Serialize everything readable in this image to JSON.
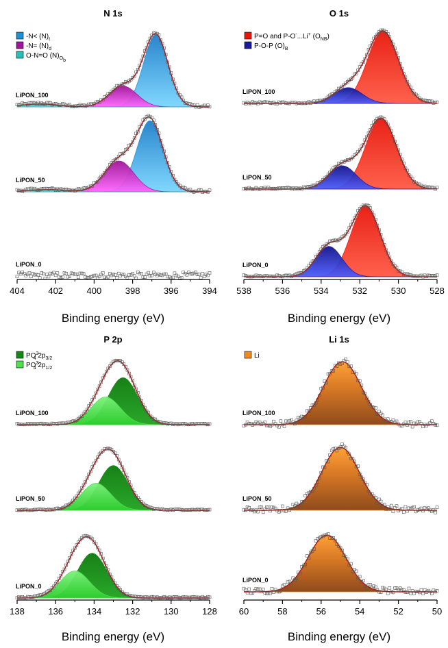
{
  "chart_data": [
    {
      "type": "area",
      "title": "N 1s",
      "xlabel": "Binding energy (eV)",
      "xlim": [
        404,
        394
      ],
      "xticks": [
        "404",
        "402",
        "400",
        "398",
        "396",
        "394"
      ],
      "legend": [
        {
          "main": "-N< (N",
          "sub": "t",
          "tail": ")",
          "color": "#1f8fd6"
        },
        {
          "main": "-N= (N",
          "sub": "d",
          "tail": ")",
          "color": "#a0159a"
        },
        {
          "main": "O-N=O (N",
          "sub": "O",
          "tail": ")",
          "sub2": "b",
          "color": "#27c0b9"
        }
      ],
      "spectra": [
        {
          "label": "LiPON_100",
          "components": [
            {
              "name": "Nt",
              "center": 396.8,
              "fwhm": 1.5,
              "height": 1.0,
              "color": "#1f8fd6"
            },
            {
              "name": "Nd",
              "center": 398.5,
              "fwhm": 1.7,
              "height": 0.29,
              "color": "#a0159a"
            },
            {
              "name": "NOb",
              "center": 402.8,
              "fwhm": 2.2,
              "height": 0.04,
              "color": "#27c0b9"
            }
          ],
          "noise": 0.02
        },
        {
          "label": "LiPON_50",
          "components": [
            {
              "name": "Nt",
              "center": 397.1,
              "fwhm": 1.6,
              "height": 0.97,
              "color": "#1f8fd6"
            },
            {
              "name": "Nd",
              "center": 398.7,
              "fwhm": 1.8,
              "height": 0.42,
              "color": "#a0159a"
            },
            {
              "name": "NOb",
              "center": 402.4,
              "fwhm": 2.4,
              "height": 0.03,
              "color": "#27c0b9"
            }
          ],
          "noise": 0.02
        },
        {
          "label": "LiPON_0",
          "components": [],
          "noise": 0.05
        }
      ]
    },
    {
      "type": "area",
      "title": "O 1s",
      "xlabel": "Binding energy (eV)",
      "xlim": [
        538,
        528
      ],
      "xticks": [
        "538",
        "536",
        "534",
        "532",
        "530",
        "528"
      ],
      "legend": [
        {
          "main": "P=O and P-O",
          "sup": "-",
          "mid": "...Li",
          "sup2": "+",
          "tail": " (O",
          "sub": "NB",
          "tail2": ")",
          "color": "#e8170b"
        },
        {
          "main": "P-O-P (O",
          "sub": "B",
          "tail": ")",
          "color": "#1a1aa0"
        }
      ],
      "spectra": [
        {
          "label": "LiPON_100",
          "components": [
            {
              "name": "ONB",
              "center": 530.8,
              "fwhm": 1.9,
              "height": 1.0,
              "color": "#e8170b"
            },
            {
              "name": "OB",
              "center": 532.6,
              "fwhm": 1.7,
              "height": 0.22,
              "color": "#1a1aa0"
            }
          ],
          "noise": 0.015
        },
        {
          "label": "LiPON_50",
          "components": [
            {
              "name": "ONB",
              "center": 530.9,
              "fwhm": 1.9,
              "height": 1.0,
              "color": "#e8170b"
            },
            {
              "name": "OB",
              "center": 532.9,
              "fwhm": 1.7,
              "height": 0.33,
              "color": "#1a1aa0"
            }
          ],
          "noise": 0.015
        },
        {
          "label": "LiPON_0",
          "components": [
            {
              "name": "ONB",
              "center": 531.7,
              "fwhm": 1.8,
              "height": 1.0,
              "color": "#e8170b"
            },
            {
              "name": "OB",
              "center": 533.6,
              "fwhm": 1.6,
              "height": 0.43,
              "color": "#1a1aa0"
            }
          ],
          "noise": 0.015
        }
      ]
    },
    {
      "type": "area",
      "title": "P 2p",
      "xlabel": "Binding energy (eV)",
      "xlim": [
        138,
        128
      ],
      "xticks": [
        "138",
        "136",
        "134",
        "132",
        "130",
        "128"
      ],
      "legend": [
        {
          "main": "PO",
          "sub": "4",
          "sup": "3-",
          "tail": " 2p",
          "sub2": "3/2",
          "color": "#148a14"
        },
        {
          "main": "PO",
          "sub": "4",
          "sup": "3-",
          "tail": " 2p",
          "sub2": "1/2",
          "color": "#4de24d"
        }
      ],
      "spectra": [
        {
          "label": "LiPON_100",
          "components": [
            {
              "name": "2p3/2",
              "center": 132.5,
              "fwhm": 1.8,
              "height": 0.78,
              "color": "#148a14"
            },
            {
              "name": "2p1/2",
              "center": 133.4,
              "fwhm": 1.8,
              "height": 0.46,
              "color": "#4de24d"
            }
          ],
          "noise": 0.01
        },
        {
          "label": "LiPON_50",
          "components": [
            {
              "name": "2p3/2",
              "center": 133.0,
              "fwhm": 1.8,
              "height": 0.76,
              "color": "#148a14"
            },
            {
              "name": "2p1/2",
              "center": 133.9,
              "fwhm": 1.8,
              "height": 0.46,
              "color": "#4de24d"
            }
          ],
          "noise": 0.01
        },
        {
          "label": "LiPON_0",
          "components": [
            {
              "name": "2p3/2",
              "center": 134.1,
              "fwhm": 1.8,
              "height": 0.76,
              "color": "#148a14"
            },
            {
              "name": "2p1/2",
              "center": 135.0,
              "fwhm": 1.8,
              "height": 0.46,
              "color": "#4de24d"
            }
          ],
          "noise": 0.01
        }
      ]
    },
    {
      "type": "area",
      "title": "Li 1s",
      "xlabel": "Binding energy (eV)",
      "xlim": [
        60,
        50
      ],
      "xticks": [
        "60",
        "58",
        "56",
        "54",
        "52",
        "50"
      ],
      "legend": [
        {
          "main": "Li",
          "color": "#f08a1e"
        }
      ],
      "spectra": [
        {
          "label": "LiPON_100",
          "components": [
            {
              "name": "Li",
              "center": 54.9,
              "fwhm": 2.3,
              "height": 1.0,
              "color": "#f08a1e"
            }
          ],
          "noise": 0.05
        },
        {
          "label": "LiPON_50",
          "components": [
            {
              "name": "Li",
              "center": 55.0,
              "fwhm": 2.3,
              "height": 1.0,
              "color": "#f08a1e"
            }
          ],
          "noise": 0.05
        },
        {
          "label": "LiPON_0",
          "components": [
            {
              "name": "Li",
              "center": 55.7,
              "fwhm": 2.3,
              "height": 0.92,
              "color": "#f08a1e"
            }
          ],
          "noise": 0.05
        }
      ]
    }
  ]
}
